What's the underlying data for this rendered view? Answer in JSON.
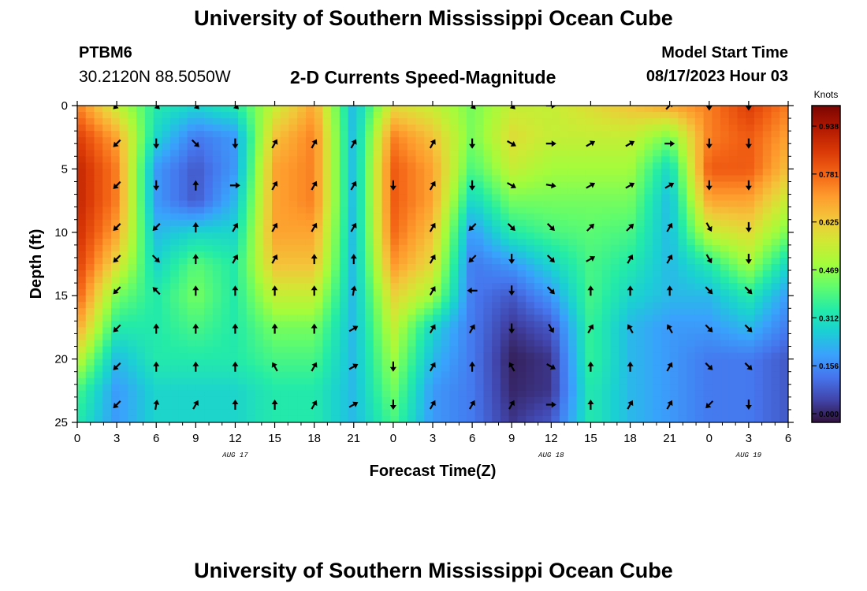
{
  "header": {
    "title": "University of Southern Mississippi Ocean Cube",
    "station_id": "PTBM6",
    "station_coords": "30.2120N  88.5050W",
    "product_title": "2-D Currents Speed-Magnitude",
    "model_start_label": "Model Start Time",
    "model_start_value": "08/17/2023 Hour 03"
  },
  "footer": {
    "title": "University of Southern Mississippi Ocean Cube"
  },
  "chart_data": {
    "type": "heatmap",
    "title": "2-D Currents Speed-Magnitude",
    "xlabel": "Forecast Time(Z)",
    "ylabel": "Depth (ft)",
    "colorbar_label": "Knots",
    "x_unit": "hours",
    "x_ticks": [
      {
        "hour": 0,
        "label": "0"
      },
      {
        "hour": 3,
        "label": "3"
      },
      {
        "hour": 6,
        "label": "6"
      },
      {
        "hour": 9,
        "label": "9"
      },
      {
        "hour": 12,
        "label": "12"
      },
      {
        "hour": 15,
        "label": "15"
      },
      {
        "hour": 18,
        "label": "18"
      },
      {
        "hour": 21,
        "label": "21"
      },
      {
        "hour": 24,
        "label": "0"
      },
      {
        "hour": 27,
        "label": "3"
      },
      {
        "hour": 30,
        "label": "6"
      },
      {
        "hour": 33,
        "label": "9"
      },
      {
        "hour": 36,
        "label": "12"
      },
      {
        "hour": 39,
        "label": "15"
      },
      {
        "hour": 42,
        "label": "18"
      },
      {
        "hour": 45,
        "label": "21"
      },
      {
        "hour": 48,
        "label": "0"
      },
      {
        "hour": 51,
        "label": "3"
      },
      {
        "hour": 54,
        "label": "6"
      }
    ],
    "date_labels": [
      {
        "hour": 12,
        "label": "AUG 17"
      },
      {
        "hour": 36,
        "label": "AUG 18"
      },
      {
        "hour": 51,
        "label": "AUG 19"
      }
    ],
    "y_ticks": [
      0,
      5,
      10,
      15,
      20,
      25
    ],
    "xlim": [
      0,
      54
    ],
    "ylim": [
      0,
      25
    ],
    "y_inverted": true,
    "colorbar_ticks": [
      "0.000",
      "0.156",
      "0.312",
      "0.469",
      "0.625",
      "0.781",
      "0.938"
    ],
    "colorbar_range": [
      0,
      1.0
    ],
    "colormap": [
      "#30123b",
      "#4145ab",
      "#4675ed",
      "#39a2fc",
      "#1bcfd4",
      "#24eca6",
      "#61fc6c",
      "#a4fc3b",
      "#d1e834",
      "#f3c63a",
      "#fe9b2d",
      "#f36315",
      "#d93806",
      "#b11901",
      "#7a0402"
    ],
    "depths": [
      0,
      2.5,
      5,
      7.5,
      10,
      12.5,
      15,
      17.5,
      20,
      22.5,
      25
    ],
    "speed_rows": [
      {
        "hour": 0,
        "speed": [
          0.75,
          0.85,
          0.9,
          0.9,
          0.88,
          0.85,
          0.8,
          0.7,
          0.55,
          0.4,
          0.35
        ]
      },
      {
        "hour": 3,
        "speed": [
          0.55,
          0.7,
          0.75,
          0.75,
          0.7,
          0.6,
          0.45,
          0.35,
          0.25,
          0.2,
          0.2
        ]
      },
      {
        "hour": 6,
        "speed": [
          0.35,
          0.3,
          0.2,
          0.2,
          0.25,
          0.3,
          0.35,
          0.35,
          0.35,
          0.3,
          0.3
        ]
      },
      {
        "hour": 9,
        "speed": [
          0.3,
          0.15,
          0.1,
          0.1,
          0.3,
          0.42,
          0.45,
          0.4,
          0.35,
          0.3,
          0.3
        ]
      },
      {
        "hour": 12,
        "speed": [
          0.35,
          0.2,
          0.2,
          0.25,
          0.3,
          0.35,
          0.35,
          0.35,
          0.35,
          0.3,
          0.3
        ]
      },
      {
        "hour": 15,
        "speed": [
          0.55,
          0.65,
          0.7,
          0.7,
          0.7,
          0.65,
          0.55,
          0.45,
          0.4,
          0.35,
          0.35
        ]
      },
      {
        "hour": 18,
        "speed": [
          0.7,
          0.75,
          0.75,
          0.75,
          0.7,
          0.65,
          0.55,
          0.45,
          0.4,
          0.35,
          0.35
        ]
      },
      {
        "hour": 21,
        "speed": [
          0.25,
          0.25,
          0.25,
          0.25,
          0.25,
          0.25,
          0.25,
          0.25,
          0.25,
          0.25,
          0.25
        ]
      },
      {
        "hour": 24,
        "speed": [
          0.6,
          0.75,
          0.8,
          0.8,
          0.78,
          0.72,
          0.62,
          0.55,
          0.5,
          0.45,
          0.4
        ]
      },
      {
        "hour": 27,
        "speed": [
          0.55,
          0.65,
          0.7,
          0.7,
          0.65,
          0.6,
          0.5,
          0.3,
          0.25,
          0.2,
          0.2
        ]
      },
      {
        "hour": 30,
        "speed": [
          0.45,
          0.45,
          0.4,
          0.3,
          0.2,
          0.15,
          0.15,
          0.15,
          0.15,
          0.15,
          0.15
        ]
      },
      {
        "hour": 33,
        "speed": [
          0.55,
          0.6,
          0.55,
          0.45,
          0.35,
          0.2,
          0.1,
          0.05,
          0.02,
          0.03,
          0.05
        ]
      },
      {
        "hour": 36,
        "speed": [
          0.55,
          0.55,
          0.5,
          0.45,
          0.4,
          0.3,
          0.2,
          0.1,
          0.05,
          0.05,
          0.1
        ]
      },
      {
        "hour": 39,
        "speed": [
          0.6,
          0.55,
          0.5,
          0.45,
          0.42,
          0.4,
          0.4,
          0.38,
          0.38,
          0.35,
          0.35
        ]
      },
      {
        "hour": 42,
        "speed": [
          0.65,
          0.55,
          0.5,
          0.45,
          0.4,
          0.35,
          0.3,
          0.25,
          0.25,
          0.25,
          0.25
        ]
      },
      {
        "hour": 45,
        "speed": [
          0.7,
          0.45,
          0.3,
          0.25,
          0.25,
          0.25,
          0.25,
          0.2,
          0.2,
          0.2,
          0.2
        ]
      },
      {
        "hour": 48,
        "speed": [
          0.75,
          0.75,
          0.8,
          0.7,
          0.55,
          0.35,
          0.25,
          0.2,
          0.15,
          0.15,
          0.15
        ]
      },
      {
        "hour": 51,
        "speed": [
          0.85,
          0.8,
          0.8,
          0.7,
          0.6,
          0.5,
          0.35,
          0.25,
          0.15,
          0.15,
          0.15
        ]
      },
      {
        "hour": 54,
        "speed": [
          0.75,
          0.7,
          0.65,
          0.55,
          0.45,
          0.3,
          0.2,
          0.15,
          0.1,
          0.1,
          0.1
        ]
      }
    ],
    "vector_depths": [
      0,
      3,
      6.3,
      9.6,
      12.1,
      14.6,
      17.6,
      20.6,
      23.6
    ],
    "vector_directions_deg": [
      {
        "hour": 0,
        "dir": [
          null,
          null,
          null,
          null,
          null,
          null,
          null,
          null,
          null
        ]
      },
      {
        "hour": 3,
        "dir": [
          225,
          225,
          225,
          225,
          225,
          225,
          225,
          225,
          225
        ]
      },
      {
        "hour": 6,
        "dir": [
          135,
          180,
          180,
          225,
          135,
          315,
          0,
          0,
          10
        ]
      },
      {
        "hour": 9,
        "dir": [
          135,
          135,
          0,
          0,
          0,
          0,
          0,
          0,
          30
        ]
      },
      {
        "hour": 12,
        "dir": [
          135,
          180,
          90,
          30,
          30,
          0,
          0,
          0,
          0
        ]
      },
      {
        "hour": 15,
        "dir": [
          null,
          30,
          30,
          30,
          30,
          0,
          0,
          330,
          0
        ]
      },
      {
        "hour": 18,
        "dir": [
          null,
          30,
          30,
          30,
          0,
          0,
          0,
          30,
          30
        ]
      },
      {
        "hour": 21,
        "dir": [
          null,
          30,
          30,
          30,
          0,
          10,
          60,
          60,
          60
        ]
      },
      {
        "hour": 24,
        "dir": [
          null,
          null,
          180,
          null,
          null,
          null,
          null,
          180,
          180
        ]
      },
      {
        "hour": 27,
        "dir": [
          null,
          30,
          30,
          30,
          30,
          30,
          30,
          30,
          30
        ]
      },
      {
        "hour": 30,
        "dir": [
          135,
          180,
          180,
          225,
          225,
          270,
          30,
          0,
          30
        ]
      },
      {
        "hour": 33,
        "dir": [
          135,
          120,
          120,
          135,
          180,
          180,
          180,
          330,
          30
        ]
      },
      {
        "hour": 36,
        "dir": [
          90,
          90,
          100,
          135,
          135,
          135,
          150,
          120,
          90
        ]
      },
      {
        "hour": 39,
        "dir": [
          null,
          60,
          60,
          45,
          60,
          0,
          30,
          0,
          0
        ]
      },
      {
        "hour": 42,
        "dir": [
          null,
          60,
          60,
          45,
          30,
          0,
          330,
          0,
          30
        ]
      },
      {
        "hour": 45,
        "dir": [
          45,
          90,
          60,
          30,
          30,
          0,
          330,
          30,
          30
        ]
      },
      {
        "hour": 48,
        "dir": [
          180,
          180,
          180,
          150,
          150,
          135,
          135,
          135,
          225
        ]
      },
      {
        "hour": 51,
        "dir": [
          180,
          180,
          180,
          180,
          180,
          135,
          135,
          135,
          180
        ]
      },
      {
        "hour": 54,
        "dir": [
          null,
          null,
          null,
          null,
          null,
          null,
          null,
          null,
          null
        ]
      }
    ]
  }
}
